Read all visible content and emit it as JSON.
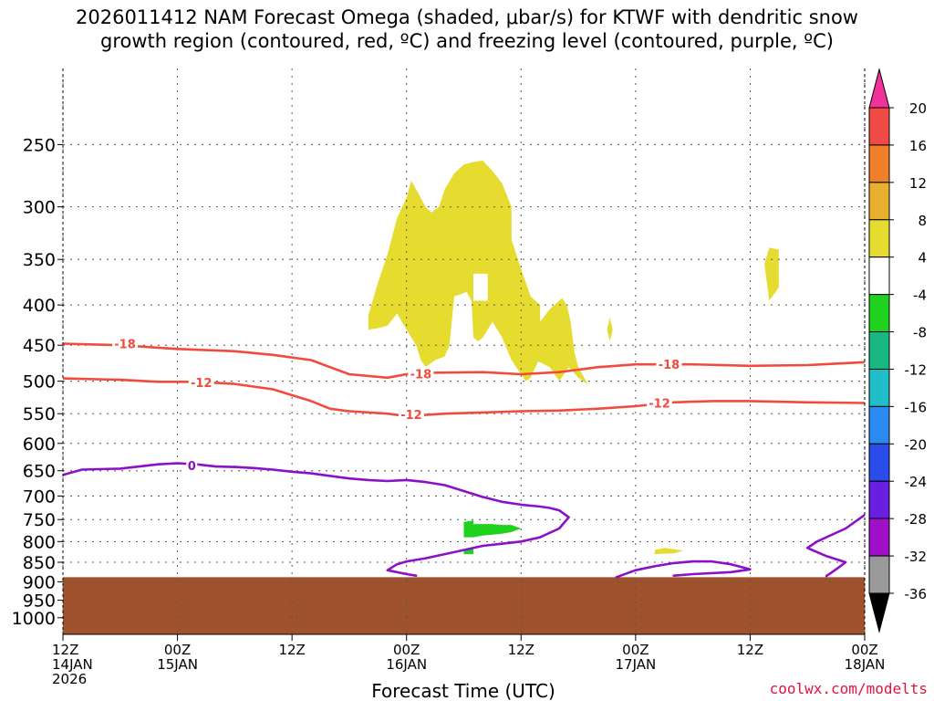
{
  "title_line1": "2026011412 NAM Forecast Omega (shaded, μbar/s) for KTWF with dendritic snow",
  "title_line2": "growth region (contoured, red, ºC) and freezing level (contoured, purple, ºC)",
  "credit": "coolwx.com/modelts",
  "chart_data": {
    "type": "time-pressure cross section",
    "title": "2026011412 NAM Forecast Omega (shaded, μbar/s) for KTWF with dendritic snow growth region (contoured, red, ºC) and freezing level (contoured, purple, ºC)",
    "xlabel": "Forecast Time (UTC)",
    "ylabel": "",
    "x_range_hours": [
      0,
      84
    ],
    "y_range_hpa": [
      1050,
      200
    ],
    "x_ticks": [
      {
        "h": 0,
        "lines": [
          "12Z",
          "14JAN",
          "2026"
        ]
      },
      {
        "h": 12,
        "lines": [
          "00Z",
          "15JAN"
        ]
      },
      {
        "h": 24,
        "lines": [
          "12Z"
        ]
      },
      {
        "h": 36,
        "lines": [
          "00Z",
          "16JAN"
        ]
      },
      {
        "h": 48,
        "lines": [
          "12Z"
        ]
      },
      {
        "h": 60,
        "lines": [
          "00Z",
          "17JAN"
        ]
      },
      {
        "h": 72,
        "lines": [
          "12Z"
        ]
      },
      {
        "h": 84,
        "lines": [
          "00Z",
          "18JAN"
        ]
      }
    ],
    "y_ticks": [
      250,
      300,
      350,
      400,
      450,
      500,
      550,
      600,
      650,
      700,
      750,
      800,
      850,
      900,
      950,
      1000
    ],
    "colorbar": {
      "labels": [
        "20",
        "16",
        "12",
        "8",
        "4",
        "-4",
        "-8",
        "-12",
        "-16",
        "-20",
        "-24",
        "-28",
        "-32",
        "-36"
      ],
      "colors": [
        "#f0329a",
        "#f04a46",
        "#f07f2a",
        "#e8b02e",
        "#e6dc30",
        "#ffffff",
        "#1ed21e",
        "#19b882",
        "#20bcc8",
        "#2a8af0",
        "#2a4ce8",
        "#6a1ee0",
        "#a010c8",
        "#9a9a9a",
        "#000000"
      ]
    },
    "ground_top_hpa": 888,
    "ground_color": "#a0522d",
    "series": [
      {
        "name": "-18 °C isotherm",
        "color": "#f04b3c",
        "label": "-18",
        "points": [
          [
            0,
            448
          ],
          [
            6,
            450
          ],
          [
            12,
            455
          ],
          [
            18,
            458
          ],
          [
            22,
            463
          ],
          [
            26,
            470
          ],
          [
            28,
            480
          ],
          [
            30,
            490
          ],
          [
            34,
            495
          ],
          [
            36,
            490
          ],
          [
            38,
            488
          ],
          [
            44,
            487
          ],
          [
            48,
            490
          ],
          [
            52,
            487
          ],
          [
            56,
            480
          ],
          [
            60,
            476
          ],
          [
            66,
            476
          ],
          [
            72,
            478
          ],
          [
            78,
            477
          ],
          [
            84,
            473
          ]
        ]
      },
      {
        "name": "-12 °C isotherm",
        "color": "#f04b3c",
        "label": "-12",
        "points": [
          [
            0,
            496
          ],
          [
            6,
            498
          ],
          [
            10,
            501
          ],
          [
            14,
            501
          ],
          [
            18,
            504
          ],
          [
            22,
            512
          ],
          [
            26,
            530
          ],
          [
            28,
            542
          ],
          [
            30,
            546
          ],
          [
            34,
            550
          ],
          [
            36,
            554
          ],
          [
            40,
            550
          ],
          [
            44,
            548
          ],
          [
            48,
            546
          ],
          [
            52,
            545
          ],
          [
            56,
            542
          ],
          [
            60,
            538
          ],
          [
            64,
            532
          ],
          [
            68,
            530
          ],
          [
            72,
            530
          ],
          [
            78,
            532
          ],
          [
            84,
            533
          ]
        ]
      },
      {
        "name": "0 °C freezing level",
        "color": "#8c10c8",
        "label": "0",
        "points": [
          [
            0,
            658
          ],
          [
            2,
            648
          ],
          [
            6,
            646
          ],
          [
            10,
            638
          ],
          [
            12,
            636
          ],
          [
            14,
            638
          ],
          [
            16,
            642
          ],
          [
            18,
            643
          ],
          [
            20,
            645
          ],
          [
            22,
            648
          ],
          [
            24,
            652
          ],
          [
            26,
            655
          ],
          [
            28,
            660
          ],
          [
            30,
            665
          ],
          [
            32,
            668
          ],
          [
            34,
            670
          ],
          [
            36,
            668
          ],
          [
            38,
            672
          ],
          [
            40,
            678
          ],
          [
            42,
            690
          ],
          [
            44,
            702
          ],
          [
            46,
            712
          ],
          [
            48,
            718
          ],
          [
            50,
            722
          ],
          [
            51,
            725
          ],
          [
            52,
            730
          ],
          [
            53,
            745
          ],
          [
            52,
            770
          ],
          [
            50,
            790
          ],
          [
            48,
            800
          ],
          [
            46,
            805
          ],
          [
            44,
            810
          ],
          [
            42,
            820
          ],
          [
            40,
            830
          ],
          [
            38,
            840
          ],
          [
            36,
            848
          ],
          [
            35,
            855
          ],
          [
            34,
            870
          ],
          [
            36,
            880
          ],
          [
            37,
            884
          ]
        ]
      },
      {
        "name": "0 °C lower contour",
        "color": "#8c10c8",
        "label": "",
        "points": [
          [
            58,
            888
          ],
          [
            60,
            870
          ],
          [
            62,
            860
          ],
          [
            64,
            852
          ],
          [
            66,
            848
          ],
          [
            68,
            848
          ],
          [
            70,
            855
          ],
          [
            72,
            868
          ],
          [
            70,
            875
          ],
          [
            66,
            880
          ],
          [
            64,
            884
          ]
        ]
      },
      {
        "name": "0 °C right contour",
        "color": "#8c10c8",
        "label": "",
        "points": [
          [
            84,
            740
          ],
          [
            82,
            770
          ],
          [
            79,
            800
          ],
          [
            78,
            815
          ],
          [
            80,
            835
          ],
          [
            82,
            850
          ],
          [
            81,
            868
          ],
          [
            80,
            885
          ]
        ]
      }
    ],
    "omega_regions": [
      {
        "class": "4 to 8",
        "color": "#e6dc30",
        "points": [
          [
            32,
            412
          ],
          [
            33,
            375
          ],
          [
            34,
            345
          ],
          [
            35,
            310
          ],
          [
            36,
            292
          ],
          [
            36.5,
            278
          ],
          [
            37.2,
            288
          ],
          [
            38,
            300
          ],
          [
            38.6,
            305
          ],
          [
            39.4,
            300
          ],
          [
            40,
            285
          ],
          [
            41,
            272
          ],
          [
            42,
            265
          ],
          [
            43,
            263
          ],
          [
            44,
            262
          ],
          [
            45,
            270
          ],
          [
            46,
            280
          ],
          [
            47,
            300
          ],
          [
            47,
            330
          ],
          [
            48,
            360
          ],
          [
            49,
            390
          ],
          [
            50,
            400
          ],
          [
            50,
            420
          ],
          [
            51,
            405
          ],
          [
            52,
            395
          ],
          [
            52.3,
            392
          ],
          [
            52.8,
            400
          ],
          [
            53.2,
            420
          ],
          [
            53.6,
            460
          ],
          [
            54,
            480
          ],
          [
            55,
            505
          ],
          [
            54,
            495
          ],
          [
            53,
            480
          ],
          [
            52,
            500
          ],
          [
            51,
            480
          ],
          [
            49.8,
            472
          ],
          [
            49,
            495
          ],
          [
            48.5,
            500
          ],
          [
            48,
            490
          ],
          [
            47,
            470
          ],
          [
            46,
            440
          ],
          [
            45,
            420
          ],
          [
            44,
            440
          ],
          [
            43.5,
            445
          ],
          [
            43,
            440
          ],
          [
            42.8,
            395
          ],
          [
            42.3,
            385
          ],
          [
            41,
            390
          ],
          [
            40.5,
            450
          ],
          [
            40,
            465
          ],
          [
            39,
            470
          ],
          [
            38,
            480
          ],
          [
            37.5,
            470
          ],
          [
            37,
            450
          ],
          [
            36,
            430
          ],
          [
            35,
            410
          ],
          [
            34,
            425
          ],
          [
            33,
            428
          ],
          [
            32,
            430
          ]
        ]
      },
      {
        "class": "4 to 8 (inner gap)",
        "color": "#ffffff",
        "points": [
          [
            43,
            365
          ],
          [
            44.5,
            365
          ],
          [
            44.5,
            395
          ],
          [
            43,
            395
          ]
        ]
      },
      {
        "class": "4 to 8 (tiny)",
        "color": "#e6dc30",
        "points": [
          [
            57,
            430
          ],
          [
            57.3,
            415
          ],
          [
            57.6,
            430
          ],
          [
            57.3,
            445
          ]
        ]
      },
      {
        "class": "4 to 8 (right)",
        "color": "#e6dc30",
        "points": [
          [
            73.5,
            355
          ],
          [
            74,
            338
          ],
          [
            75,
            340
          ],
          [
            75,
            380
          ],
          [
            74,
            395
          ]
        ]
      },
      {
        "class": "4 to 8 (low)",
        "color": "#e6dc30",
        "points": [
          [
            62,
            820
          ],
          [
            63,
            815
          ],
          [
            64,
            818
          ],
          [
            65,
            822
          ],
          [
            64,
            828
          ],
          [
            62,
            830
          ]
        ]
      },
      {
        "class": "-4 to -8",
        "color": "#1ed21e",
        "points": [
          [
            42,
            775
          ],
          [
            42,
            755
          ],
          [
            43,
            752
          ],
          [
            43,
            760
          ],
          [
            45,
            760
          ],
          [
            46,
            762
          ],
          [
            47,
            762
          ],
          [
            48,
            770
          ],
          [
            47,
            778
          ],
          [
            46,
            782
          ],
          [
            44,
            786
          ],
          [
            43,
            790
          ],
          [
            42,
            790
          ]
        ]
      },
      {
        "class": "-4 to -8 (small)",
        "color": "#1ed21e",
        "points": [
          [
            42,
            830
          ],
          [
            42,
            818
          ],
          [
            43,
            818
          ],
          [
            43,
            830
          ]
        ]
      }
    ]
  }
}
